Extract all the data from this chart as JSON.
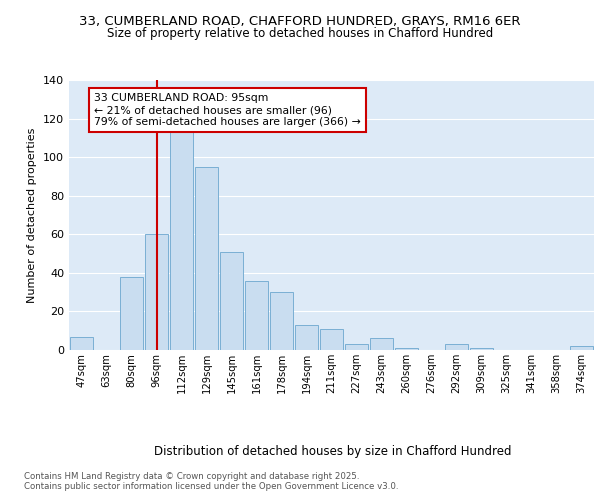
{
  "title1": "33, CUMBERLAND ROAD, CHAFFORD HUNDRED, GRAYS, RM16 6ER",
  "title2": "Size of property relative to detached houses in Chafford Hundred",
  "xlabel": "Distribution of detached houses by size in Chafford Hundred",
  "ylabel": "Number of detached properties",
  "categories": [
    "47sqm",
    "63sqm",
    "80sqm",
    "96sqm",
    "112sqm",
    "129sqm",
    "145sqm",
    "161sqm",
    "178sqm",
    "194sqm",
    "211sqm",
    "227sqm",
    "243sqm",
    "260sqm",
    "276sqm",
    "292sqm",
    "309sqm",
    "325sqm",
    "341sqm",
    "358sqm",
    "374sqm"
  ],
  "values": [
    7,
    0,
    38,
    60,
    115,
    95,
    51,
    36,
    30,
    13,
    11,
    3,
    6,
    1,
    0,
    3,
    1,
    0,
    0,
    0,
    2
  ],
  "bar_color": "#c9ddf0",
  "bar_edge_color": "#7aafd4",
  "vline_x_idx": 3,
  "vline_color": "#cc0000",
  "annotation_title": "33 CUMBERLAND ROAD: 95sqm",
  "annotation_line1": "← 21% of detached houses are smaller (96)",
  "annotation_line2": "79% of semi-detached houses are larger (366) →",
  "annotation_box_color": "#ffffff",
  "annotation_box_edge": "#cc0000",
  "ylim": [
    0,
    140
  ],
  "yticks": [
    0,
    20,
    40,
    60,
    80,
    100,
    120,
    140
  ],
  "footnote1": "Contains HM Land Registry data © Crown copyright and database right 2025.",
  "footnote2": "Contains public sector information licensed under the Open Government Licence v3.0.",
  "plot_bg": "#ddeaf7",
  "fig_bg": "#ffffff",
  "grid_color": "#ffffff",
  "title1_fontsize": 9.5,
  "title2_fontsize": 8.5
}
